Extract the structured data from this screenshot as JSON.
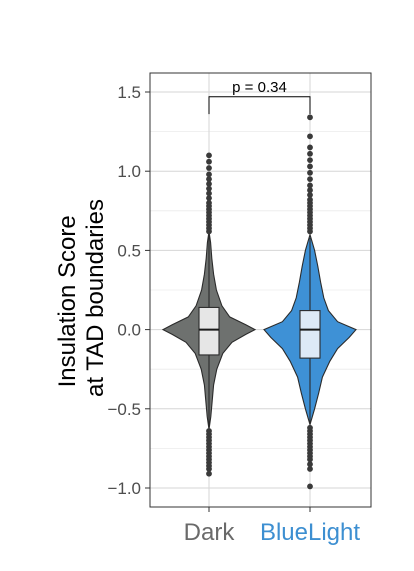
{
  "chart_data": {
    "type": "violin",
    "title": "",
    "xlabel": "",
    "ylabel_lines": [
      "Insulation Score",
      "at TAD boundaries"
    ],
    "ylim": [
      -1.12,
      1.62
    ],
    "y_ticks": [
      -1.0,
      -0.5,
      0.0,
      0.5,
      1.0,
      1.5
    ],
    "y_tick_labels": [
      "−1.0",
      "−0.5",
      "0.0",
      "0.5",
      "1.0",
      "1.5"
    ],
    "grid": true,
    "categories": [
      "Dark",
      "BlueLight"
    ],
    "category_colors": [
      "#6a6a6a",
      "#3d8fd1"
    ],
    "series": [
      {
        "category": "Dark",
        "fill": "#6e716f",
        "box_fill": "#e6e6e6",
        "median": 0.0,
        "q1": -0.16,
        "q3": 0.14,
        "whisker_low": -0.62,
        "whisker_high": 0.6,
        "density": [
          [
            -0.63,
            0.0
          ],
          [
            -0.55,
            0.04
          ],
          [
            -0.45,
            0.07
          ],
          [
            -0.35,
            0.1
          ],
          [
            -0.25,
            0.17
          ],
          [
            -0.15,
            0.3
          ],
          [
            -0.08,
            0.5
          ],
          [
            -0.03,
            0.8
          ],
          [
            0.0,
            1.0
          ],
          [
            0.03,
            0.8
          ],
          [
            0.08,
            0.45
          ],
          [
            0.15,
            0.28
          ],
          [
            0.25,
            0.16
          ],
          [
            0.35,
            0.1
          ],
          [
            0.45,
            0.06
          ],
          [
            0.55,
            0.035
          ],
          [
            0.62,
            0.0
          ]
        ],
        "outliers": [
          -0.91,
          -0.88,
          -0.86,
          -0.84,
          -0.82,
          -0.8,
          -0.78,
          -0.76,
          -0.74,
          -0.72,
          -0.7,
          -0.68,
          -0.66,
          -0.64,
          0.62,
          0.64,
          0.66,
          0.68,
          0.7,
          0.72,
          0.74,
          0.76,
          0.78,
          0.8,
          0.83,
          0.86,
          0.89,
          0.92,
          0.95,
          0.98,
          1.02,
          1.06,
          1.1
        ]
      },
      {
        "category": "BlueLight",
        "fill": "#3e91d6",
        "box_fill": "#dde9f6",
        "median": 0.0,
        "q1": -0.18,
        "q3": 0.12,
        "whisker_low": -0.6,
        "whisker_high": 0.58,
        "density": [
          [
            -0.6,
            0.0
          ],
          [
            -0.5,
            0.1
          ],
          [
            -0.4,
            0.19
          ],
          [
            -0.3,
            0.27
          ],
          [
            -0.2,
            0.43
          ],
          [
            -0.12,
            0.6
          ],
          [
            -0.05,
            0.85
          ],
          [
            0.0,
            1.0
          ],
          [
            0.05,
            0.6
          ],
          [
            0.12,
            0.4
          ],
          [
            0.2,
            0.3
          ],
          [
            0.3,
            0.23
          ],
          [
            0.4,
            0.17
          ],
          [
            0.5,
            0.1
          ],
          [
            0.6,
            0.0
          ]
        ],
        "outliers": [
          -0.99,
          -0.88,
          -0.85,
          -0.82,
          -0.8,
          -0.78,
          -0.76,
          -0.74,
          -0.72,
          -0.7,
          -0.68,
          -0.66,
          -0.64,
          -0.62,
          0.62,
          0.64,
          0.66,
          0.68,
          0.7,
          0.72,
          0.74,
          0.76,
          0.78,
          0.8,
          0.82,
          0.85,
          0.88,
          0.91,
          0.95,
          0.99,
          1.03,
          1.07,
          1.11,
          1.15,
          1.22,
          1.34
        ]
      }
    ],
    "annotation": {
      "text": "p = 0.34",
      "bracket_y": 1.47,
      "bracket_drop_y": 1.36
    }
  }
}
